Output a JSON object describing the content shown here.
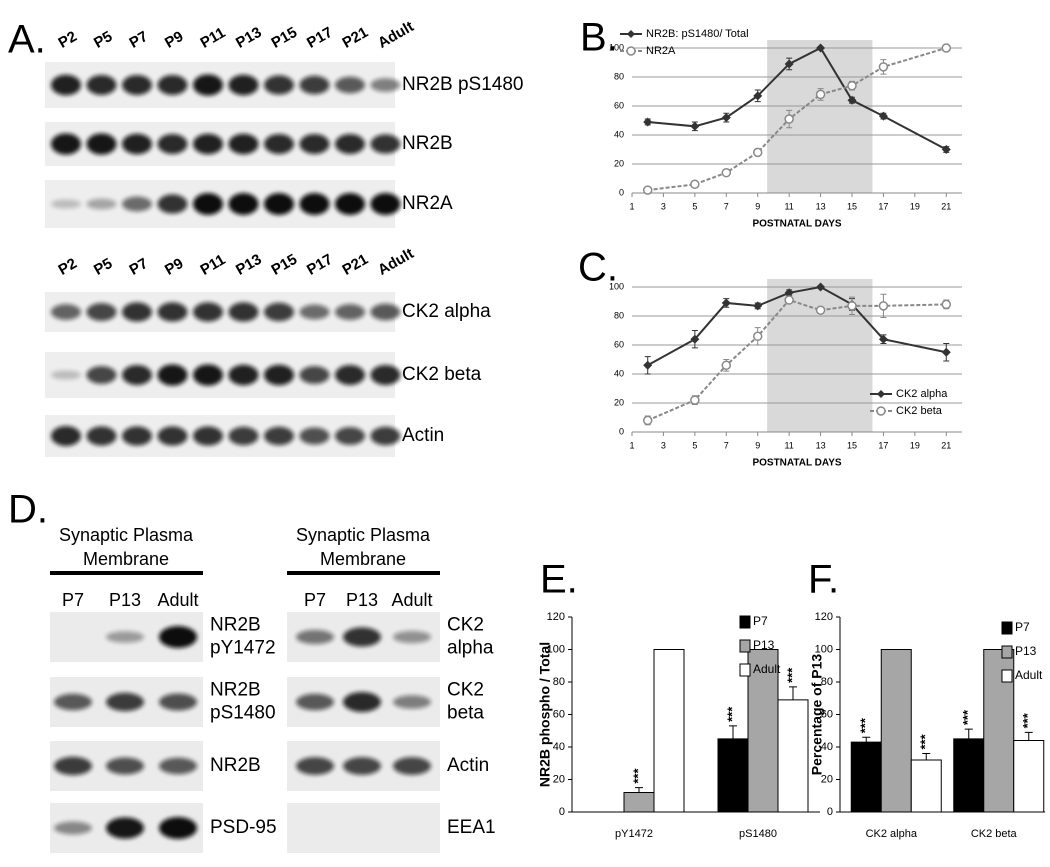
{
  "panel_a": {
    "label": "A.",
    "lanes_top": [
      "P2",
      "P5",
      "P7",
      "P9",
      "P11",
      "P13",
      "P15",
      "P17",
      "P21",
      "Adult"
    ],
    "blots_top": [
      "NR2B pS1480",
      "NR2B",
      "NR2A"
    ],
    "lanes_bottom": [
      "P2",
      "P5",
      "P7",
      "P9",
      "P11",
      "P13",
      "P15",
      "P17",
      "P21",
      "Adult"
    ],
    "blots_bottom": [
      "CK2 alpha",
      "CK2 beta",
      "Actin"
    ]
  },
  "panel_d": {
    "label": "D.",
    "left": {
      "header": [
        "Synaptic Plasma",
        "Membrane"
      ],
      "lanes": [
        "P7",
        "P13",
        "Adult"
      ],
      "blots": [
        [
          "NR2B",
          "pY1472"
        ],
        [
          "NR2B",
          "pS1480"
        ],
        [
          "NR2B"
        ],
        [
          "PSD-95"
        ]
      ]
    },
    "right": {
      "header": [
        "Synaptic Plasma",
        "Membrane"
      ],
      "lanes": [
        "P7",
        "P13",
        "Adult"
      ],
      "blots": [
        [
          "CK2",
          "alpha"
        ],
        [
          "CK2",
          "beta"
        ],
        [
          "Actin"
        ],
        [
          "EEA1"
        ]
      ]
    }
  },
  "chart_data": [
    {
      "label": "B.",
      "type": "line",
      "x": [
        2,
        5,
        7,
        9,
        11,
        13,
        15,
        17,
        21
      ],
      "xlim": [
        1,
        22
      ],
      "xticks": [
        1,
        3,
        5,
        7,
        9,
        11,
        13,
        15,
        17,
        19,
        21
      ],
      "ylim": [
        0,
        100
      ],
      "yticks": [
        0,
        20,
        40,
        60,
        80,
        100
      ],
      "grid": true,
      "xlabel": "POSTNATAL DAYS",
      "shaded_x": [
        9.6,
        16.3
      ],
      "legend": "upper left",
      "series": [
        {
          "name": "NR2B: pS1480/ Total",
          "color": "#333333",
          "marker": "diamond",
          "dashed": false,
          "values": [
            49,
            46,
            52,
            67,
            89,
            100,
            64,
            53,
            30
          ],
          "errors": [
            2,
            3,
            3,
            4,
            4,
            0,
            2,
            2,
            2
          ]
        },
        {
          "name": "NR2A",
          "color": "#888888",
          "marker": "circle",
          "dashed": true,
          "values": [
            2,
            6,
            14,
            28,
            51,
            68,
            74,
            87,
            100
          ],
          "errors": [
            1,
            1,
            1,
            2,
            6,
            4,
            3,
            5,
            1
          ]
        }
      ]
    },
    {
      "label": "C.",
      "type": "line",
      "x": [
        2,
        5,
        7,
        9,
        11,
        13,
        15,
        17,
        21
      ],
      "xlim": [
        1,
        22
      ],
      "xticks": [
        1,
        3,
        5,
        7,
        9,
        11,
        13,
        15,
        17,
        19,
        21
      ],
      "ylim": [
        0,
        100
      ],
      "yticks": [
        0,
        20,
        40,
        60,
        80,
        100
      ],
      "grid": true,
      "xlabel": "POSTNATAL DAYS",
      "shaded_x": [
        9.6,
        16.3
      ],
      "legend": "lower right",
      "series": [
        {
          "name": "CK2 alpha",
          "color": "#333333",
          "marker": "diamond",
          "dashed": false,
          "values": [
            46,
            64,
            89,
            87,
            96,
            100,
            88,
            64,
            55
          ],
          "errors": [
            6,
            6,
            3,
            2,
            2,
            0,
            4,
            3,
            6
          ]
        },
        {
          "name": "CK2 beta",
          "color": "#888888",
          "marker": "circle",
          "dashed": true,
          "values": [
            8,
            22,
            46,
            66,
            91,
            84,
            87,
            87,
            88
          ],
          "errors": [
            3,
            3,
            4,
            6,
            2,
            0,
            6,
            8,
            3
          ]
        }
      ]
    },
    {
      "label": "E.",
      "type": "bar",
      "categories": [
        "pY1472",
        "pS1480"
      ],
      "ylim": [
        0,
        120
      ],
      "yticks": [
        0,
        20,
        40,
        60,
        80,
        100,
        120
      ],
      "ylabel": "NR2B phospho / Total",
      "legend": "upper right",
      "series": [
        {
          "name": "P7",
          "color": "#000000",
          "values": [
            0,
            45
          ],
          "errors": [
            0,
            8
          ],
          "annotations": [
            null,
            "***"
          ]
        },
        {
          "name": "P13",
          "color": "#a6a6a6",
          "values": [
            12,
            100
          ],
          "errors": [
            3,
            0
          ],
          "annotations": [
            "***",
            null
          ]
        },
        {
          "name": "Adult",
          "color": "#ffffff",
          "values": [
            100,
            69
          ],
          "errors": [
            0,
            8
          ],
          "annotations": [
            null,
            "***"
          ]
        }
      ]
    },
    {
      "label": "F.",
      "type": "bar",
      "categories": [
        "CK2 alpha",
        "CK2 beta"
      ],
      "ylim": [
        0,
        120
      ],
      "yticks": [
        0,
        20,
        40,
        60,
        80,
        100,
        120
      ],
      "ylabel": "Percentage of P13",
      "legend": "upper right",
      "series": [
        {
          "name": "P7",
          "color": "#000000",
          "values": [
            43,
            45
          ],
          "errors": [
            3,
            6
          ],
          "annotations": [
            "***",
            "***"
          ]
        },
        {
          "name": "P13",
          "color": "#a6a6a6",
          "values": [
            100,
            100
          ],
          "errors": [
            0,
            0
          ],
          "annotations": [
            null,
            null
          ]
        },
        {
          "name": "Adult",
          "color": "#ffffff",
          "values": [
            32,
            44
          ],
          "errors": [
            4,
            5
          ],
          "annotations": [
            "***",
            "***"
          ]
        }
      ]
    }
  ]
}
